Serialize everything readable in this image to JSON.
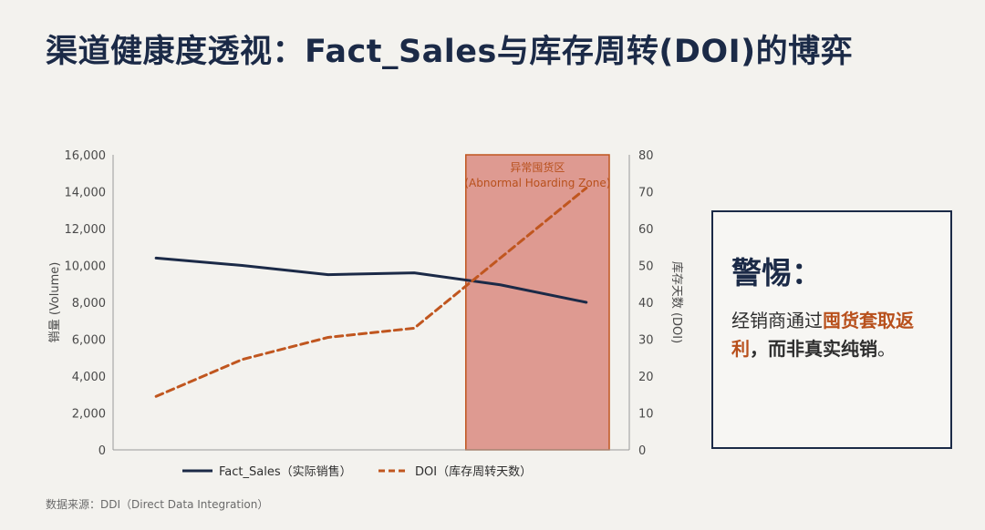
{
  "title": "渠道健康度透视：Fact_Sales与库存周转(DOI)的博弈",
  "chart_data": {
    "type": "line",
    "x": [
      1,
      2,
      3,
      4,
      5,
      6
    ],
    "series": [
      {
        "name": "Fact_Sales（实际销售）",
        "axis": "left",
        "style": "solid",
        "color": "#1b2a47",
        "values": [
          10400,
          10000,
          9500,
          9600,
          8950,
          8000
        ]
      },
      {
        "name": "DOI（库存周转天数）",
        "axis": "right",
        "style": "dashed",
        "color": "#c0561f",
        "values": [
          14.5,
          24.5,
          30.5,
          33,
          52,
          71
        ]
      }
    ],
    "ylabel": "销量 (Volume)",
    "ylabel_right": "库存天数 (DOI)",
    "ylim": [
      0,
      16000
    ],
    "ylim_right": [
      0,
      80
    ],
    "yticks": [
      "0",
      "2,000",
      "4,000",
      "6,000",
      "8,000",
      "10,000",
      "12,000",
      "14,000",
      "16,000"
    ],
    "yticks_right": [
      "0",
      "10",
      "20",
      "30",
      "40",
      "50",
      "60",
      "70",
      "80"
    ],
    "highlight_zone": {
      "x_from": 4.6,
      "x_to": 6.5,
      "label_line1": "异常囤货区",
      "label_line2": "(Abnormal Hoarding Zone)",
      "fill_color": "#d98b80",
      "border_color": "#c0561f"
    },
    "grid": false,
    "legend_position": "bottom"
  },
  "callout": {
    "title": "警惕：",
    "body_prefix": "经销商通过",
    "body_highlight": "囤货套取返利",
    "body_strong": "，而非真实纯销",
    "body_suffix": "。"
  },
  "source": "数据来源：DDI（Direct Data Integration）"
}
